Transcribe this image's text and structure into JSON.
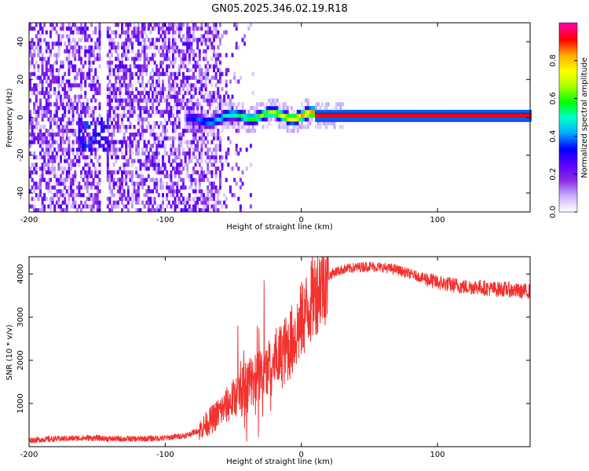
{
  "title": "GN05.2025.346.02.19.R18",
  "colors": {
    "snr_line": "#f2322e",
    "colormap": [
      "#ffffff",
      "#c9b0ff",
      "#8a2be2",
      "#5a00ff",
      "#0000ff",
      "#00aaff",
      "#00ffcc",
      "#00ff00",
      "#aaff00",
      "#ffff00",
      "#ffaa00",
      "#ff0000",
      "#ff00aa"
    ]
  },
  "chart_data": [
    {
      "type": "heatmap",
      "title": "",
      "xlabel": "Height of straight line (km)",
      "ylabel": "Frequency (Hz)",
      "xlim": [
        -200,
        168
      ],
      "ylim": [
        -50,
        50
      ],
      "xticks": [
        -200,
        -100,
        0,
        100
      ],
      "yticks": [
        -40,
        -20,
        0,
        20,
        40
      ],
      "colorbar": {
        "label": "Normalized spectral amplitude",
        "range": [
          0,
          1
        ],
        "ticks": [
          0.0,
          0.2,
          0.4,
          0.6,
          0.8
        ]
      },
      "features": {
        "noise_region_x": [
          -200,
          -60
        ],
        "carrier_frequency_hz": 0,
        "carrier_wander_x": [
          -85,
          10
        ],
        "stable_carrier_x": [
          10,
          168
        ]
      }
    },
    {
      "type": "line",
      "title": "",
      "xlabel": "Height of straight line (km)",
      "ylabel": "SNR (10 * v/v)",
      "xlim": [
        -200,
        168
      ],
      "ylim": [
        0,
        4400
      ],
      "xticks": [
        -200,
        -100,
        0,
        100
      ],
      "yticks": [
        1000,
        2000,
        3000,
        4000
      ],
      "series": [
        {
          "x": [
            -200,
            -180,
            -160,
            -150,
            -140,
            -120,
            -100,
            -85,
            -75,
            -70,
            -65,
            -60,
            -55,
            -50,
            -45,
            -40,
            -35,
            -30,
            -25,
            -20,
            -15,
            -10,
            -5,
            0,
            5,
            10,
            15,
            20,
            25,
            30,
            40,
            50,
            60,
            70,
            80,
            90,
            100,
            110,
            120,
            130,
            140,
            150,
            160,
            168
          ],
          "values": [
            150,
            180,
            200,
            200,
            180,
            180,
            200,
            260,
            380,
            520,
            650,
            800,
            950,
            1100,
            1300,
            1450,
            1550,
            1650,
            1800,
            1950,
            2100,
            2300,
            2550,
            2900,
            3200,
            3550,
            3800,
            3950,
            4050,
            4100,
            4150,
            4180,
            4150,
            4100,
            4000,
            3900,
            3800,
            3750,
            3700,
            3700,
            3650,
            3650,
            3600,
            3600
          ]
        }
      ]
    }
  ]
}
